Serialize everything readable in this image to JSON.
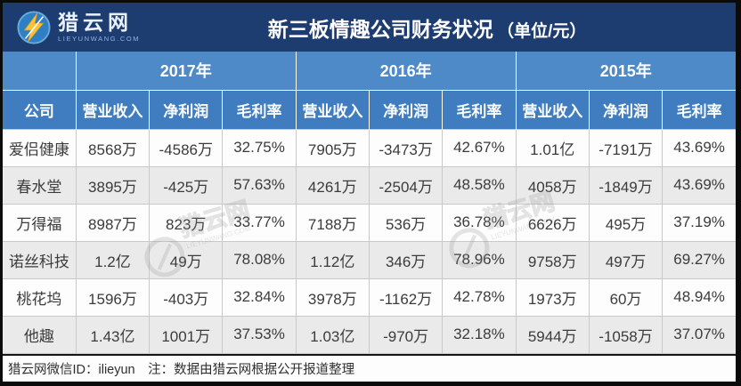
{
  "header": {
    "logo_text": "猎云网",
    "logo_url": "LIEYUNWANG.COM",
    "title": "新三板情趣公司财务状况",
    "title_unit": "（单位/元）"
  },
  "chart_data": {
    "type": "table",
    "title": "新三板情趣公司财务状况（单位/元）",
    "company_header": "公司",
    "year_groups": [
      "2017年",
      "2016年",
      "2015年"
    ],
    "metric_headers": [
      "营业收入",
      "净利润",
      "毛利率"
    ],
    "rows": [
      {
        "company": "爱侣健康",
        "values": [
          "8568万",
          "-4586万",
          "32.75%",
          "7905万",
          "-3473万",
          "42.67%",
          "1.01亿",
          "-7191万",
          "43.69%"
        ]
      },
      {
        "company": "春水堂",
        "values": [
          "3895万",
          "-425万",
          "57.63%",
          "4261万",
          "-2504万",
          "48.58%",
          "4058万",
          "-1849万",
          "43.69%"
        ]
      },
      {
        "company": "万得福",
        "values": [
          "8987万",
          "823万",
          "33.77%",
          "7188万",
          "536万",
          "36.78%",
          "6626万",
          "495万",
          "37.19%"
        ]
      },
      {
        "company": "诺丝科技",
        "values": [
          "1.2亿",
          "49万",
          "78.08%",
          "1.12亿",
          "346万",
          "78.96%",
          "9758万",
          "497万",
          "69.27%"
        ]
      },
      {
        "company": "桃花坞",
        "values": [
          "1596万",
          "-403万",
          "32.84%",
          "3978万",
          "-1162万",
          "42.78%",
          "1973万",
          "60万",
          "48.94%"
        ]
      },
      {
        "company": "他趣",
        "values": [
          "1.43亿",
          "1001万",
          "37.53%",
          "1.03亿",
          "-970万",
          "32.18%",
          "5944万",
          "-1058万",
          "37.07%"
        ]
      }
    ]
  },
  "footer": {
    "text": "猎云网微信ID：ilieyun　注：数据由猎云网根据公开报道整理"
  },
  "watermark": {
    "text": "猎云网",
    "subtext": "LIEYUNWANG.COM"
  },
  "colors": {
    "frame_border": "#0b0b0b",
    "header_bg": "#1d3c70",
    "year_row_bg": "#4e89c8",
    "metric_row_bg": "#3f7dc0",
    "stripe_bg": "#eaeaea",
    "cell_border": "#c9c9c9",
    "logo_bolt": "#f6c437",
    "logo_circle": "#2e7fc4"
  }
}
